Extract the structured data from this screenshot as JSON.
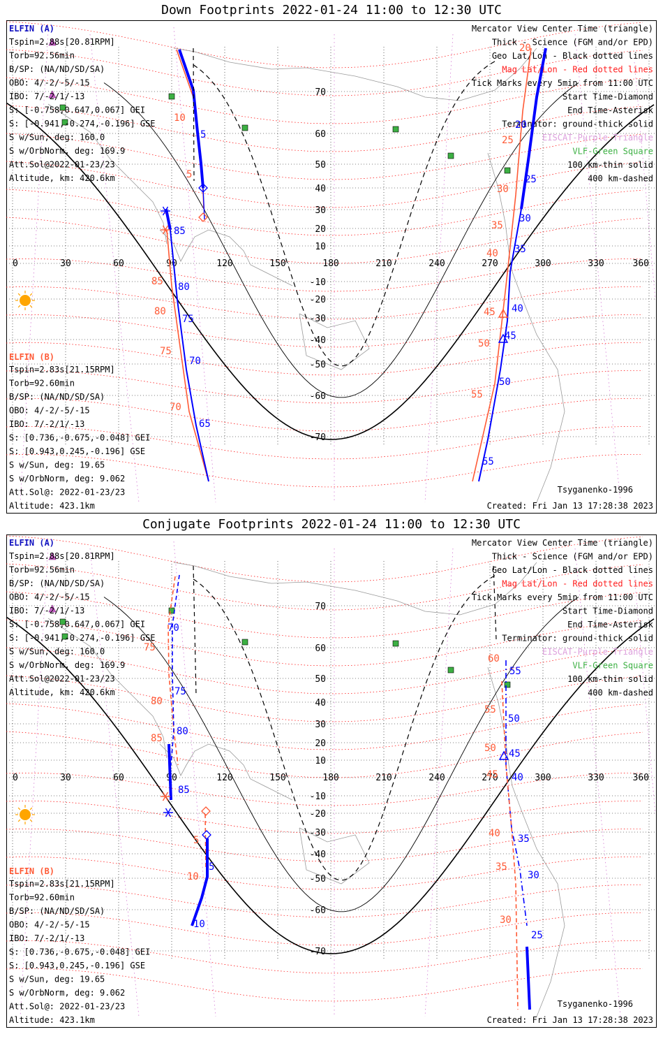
{
  "titles": {
    "down": "Down Footprints 2022-01-24 11:00 to 12:30 UTC",
    "conjugate": "Conjugate Footprints 2022-01-24 11:00 to 12:30 UTC"
  },
  "elfin_a": {
    "heading": "ELFIN (A)",
    "lines": [
      "Tspin=2.88s[20.81RPM]",
      "Torb=92.56min",
      "B/SP: (NA/ND/SD/SA)",
      "OBO: 4/-2/-5/-15",
      "IBO: 7/-2/1/-13",
      "S: [-0.758,0.647,0.067] GEI",
      "S: [-0.941,-0.274,-0.196] GSE",
      "S w/Sun, deg: 160.0",
      "S w/OrbNorm, deg: 169.9",
      "Att.Sol@2022-01-23/23",
      "Altitude, km: 420.6km"
    ]
  },
  "elfin_b": {
    "heading": "ELFIN (B)",
    "lines": [
      "Tspin=2.83s[21.15RPM]",
      "Torb=92.60min",
      "B/SP: (NA/ND/SD/SA)",
      "OBO: 4/-2/-5/-15",
      "IBO: 7/-2/1/-13",
      "S: [0.736,-0.675,-0.048] GEI",
      "S: [0.943,0.245,-0.196] GSE",
      "S w/Sun, deg: 19.65",
      "S w/OrbNorm, deg: 9.062",
      "Att.Sol@: 2022-01-23/23",
      "Altitude: 423.1km"
    ]
  },
  "legend": [
    {
      "text": "Mercator View Center Time (triangle)",
      "color": "#000000"
    },
    {
      "text": "Thick - Science (FGM and/or EPD)",
      "color": "#000000"
    },
    {
      "text": "Geo Lat/Lon - Black dotted lines",
      "color": "#000000"
    },
    {
      "text": "Mag Lat/Lon - Red dotted lines",
      "color": "#ff2020"
    },
    {
      "text": "Tick Marks every 5min from 11:00 UTC",
      "color": "#000000"
    },
    {
      "text": "Start Time-Diamond",
      "color": "#000000"
    },
    {
      "text": "End Time-Asterisk",
      "color": "#000000"
    },
    {
      "text": "Terminator: ground-thick solid",
      "color": "#000000"
    },
    {
      "text": "EISCAT-Purple Triangle",
      "color": "#dda0dd"
    },
    {
      "text": "VLF-Green Square",
      "color": "#3cb043"
    },
    {
      "text": "100 km-thin solid",
      "color": "#000000"
    },
    {
      "text": "400 km-dashed",
      "color": "#000000"
    }
  ],
  "model": "Tsyganenko-1996",
  "created": "Created: Fri Jan 13 17:28:38 2023",
  "map": {
    "lon_ticks": [
      "0",
      "30",
      "60",
      "90",
      "120",
      "150",
      "180",
      "210",
      "240",
      "270",
      "300",
      "330",
      "360"
    ],
    "lat_ticks": [
      "70",
      "60",
      "50",
      "40",
      "30",
      "20",
      "10",
      "-10",
      "-20",
      "-30",
      "-40",
      "-50",
      "-60",
      "-70"
    ]
  },
  "colors": {
    "elfin_a": "#0000ff",
    "elfin_b": "#ff5a36",
    "mag_grid": "#ff0000",
    "geo_grid": "#000000",
    "vlf": "#3cb043",
    "eiscat": "#cc66cc",
    "sun": "#ffa500"
  },
  "down_labels": {
    "a": [
      "5",
      "85",
      "80",
      "75",
      "70",
      "65",
      "20",
      "25",
      "30",
      "35",
      "40",
      "45",
      "50",
      "55"
    ],
    "b": [
      "10",
      "5",
      "85",
      "80",
      "75",
      "70",
      "20",
      "25",
      "30",
      "35",
      "40",
      "45",
      "50",
      "55"
    ]
  },
  "conj_labels": {
    "a": [
      "70",
      "75",
      "80",
      "85",
      "5",
      "10",
      "55",
      "50",
      "45",
      "40",
      "35",
      "30",
      "25"
    ],
    "b": [
      "75",
      "80",
      "85",
      "5",
      "10",
      "60",
      "55",
      "50",
      "45",
      "40",
      "35",
      "30"
    ]
  }
}
